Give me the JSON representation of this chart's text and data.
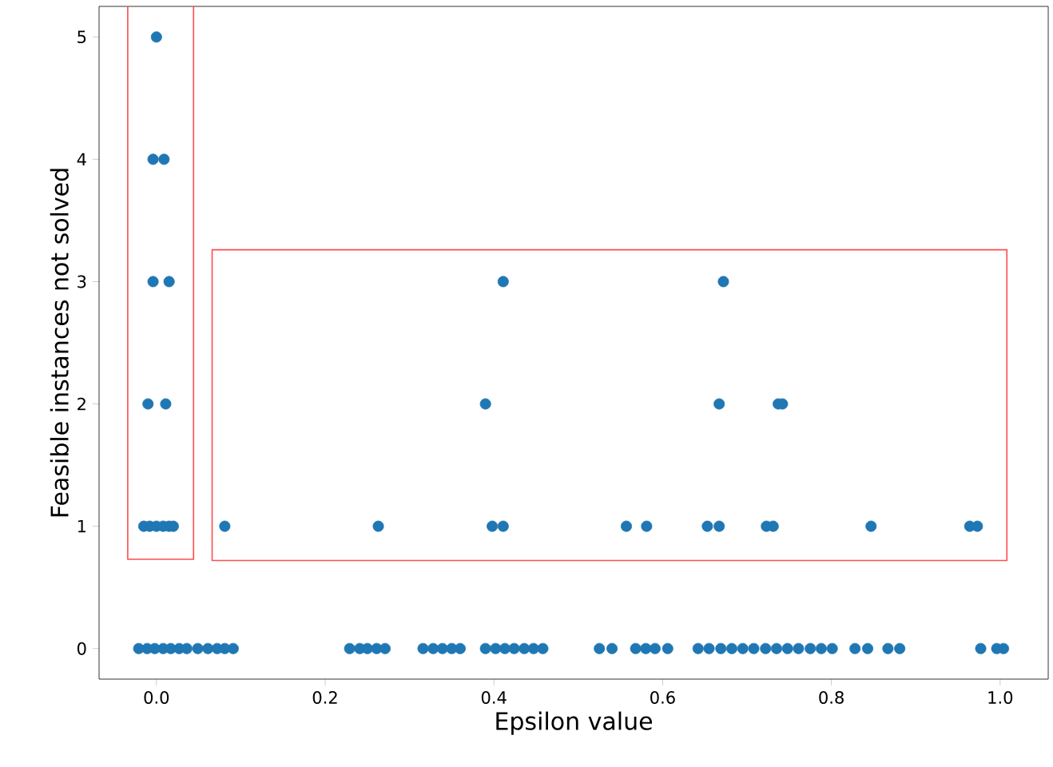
{
  "chart_data": {
    "type": "scatter",
    "xlabel": "Epsilon value",
    "ylabel": "Feasible instances not solved",
    "x": [
      0.0,
      -0.004,
      0.009,
      -0.004,
      0.015,
      -0.01,
      0.011,
      -0.015,
      -0.008,
      0.0,
      0.008,
      0.015,
      0.02,
      0.081,
      0.263,
      0.398,
      0.411,
      0.557,
      0.581,
      0.653,
      0.667,
      0.723,
      0.731,
      0.847,
      0.964,
      0.973,
      0.39,
      0.667,
      0.737,
      0.742,
      0.411,
      0.672,
      -0.021,
      -0.011,
      -0.002,
      0.008,
      0.017,
      0.027,
      0.036,
      0.049,
      0.061,
      0.072,
      0.081,
      0.091,
      0.229,
      0.241,
      0.25,
      0.261,
      0.271,
      0.316,
      0.328,
      0.339,
      0.35,
      0.36,
      0.39,
      0.402,
      0.413,
      0.424,
      0.436,
      0.447,
      0.458,
      0.525,
      0.54,
      0.568,
      0.58,
      0.591,
      0.606,
      0.642,
      0.655,
      0.669,
      0.682,
      0.695,
      0.708,
      0.722,
      0.735,
      0.748,
      0.761,
      0.775,
      0.788,
      0.801,
      0.828,
      0.843,
      0.867,
      0.881,
      0.977,
      0.996,
      1.004
    ],
    "values": [
      5,
      4,
      4,
      3,
      3,
      2,
      2,
      1,
      1,
      1,
      1,
      1,
      1,
      1,
      1,
      1,
      1,
      1,
      1,
      1,
      1,
      1,
      1,
      1,
      1,
      1,
      2,
      2,
      2,
      2,
      3,
      3,
      0,
      0,
      0,
      0,
      0,
      0,
      0,
      0,
      0,
      0,
      0,
      0,
      0,
      0,
      0,
      0,
      0,
      0,
      0,
      0,
      0,
      0,
      0,
      0,
      0,
      0,
      0,
      0,
      0,
      0,
      0,
      0,
      0,
      0,
      0,
      0,
      0,
      0,
      0,
      0,
      0,
      0,
      0,
      0,
      0,
      0,
      0,
      0,
      0,
      0,
      0,
      0,
      0,
      0,
      0
    ],
    "color": "#1f77b4",
    "xlim": [
      -0.068,
      1.057
    ],
    "ylim": [
      -0.25,
      5.25
    ],
    "xticks": [
      {
        "value": 0,
        "label": "0.0"
      },
      0.2,
      0.4,
      0.6,
      0.8,
      {
        "value": 1,
        "label": "1.0"
      }
    ],
    "yticks": [
      0,
      1,
      2,
      3,
      4,
      5
    ]
  }
}
